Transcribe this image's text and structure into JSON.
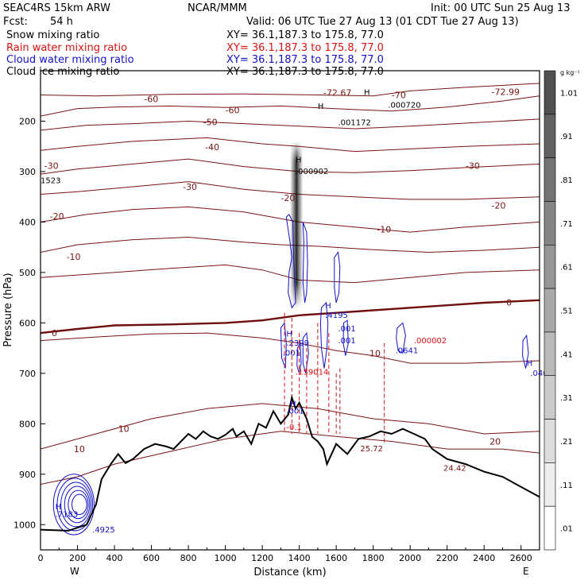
{
  "header": {
    "model": "SEAC4RS 15km ARW",
    "fcst_label": "Fcst:",
    "fcst_value": "54 h",
    "center": "NCAR/MMM",
    "init": "Init: 00 UTC Sun 25 Aug 13",
    "valid": "Valid: 06 UTC Tue 27 Aug 13 (01 CDT Tue 27 Aug 13)",
    "fields": [
      {
        "name": "Snow mixing ratio",
        "xy": "XY=  36.1,187.3 to 175.8, 77.0",
        "color": "#000000"
      },
      {
        "name": "Rain water mixing ratio",
        "xy": "XY=  36.1,187.3 to 175.8, 77.0",
        "color": "#dd1111"
      },
      {
        "name": "Cloud water mixing ratio",
        "xy": "XY=  36.1,187.3 to 175.8, 77.0",
        "color": "#1111cc"
      },
      {
        "name": "Cloud ice mixing ratio",
        "xy": "XY=  36.1,187.3 to 175.8, 77.0",
        "color": "#000000"
      }
    ]
  },
  "colors": {
    "temperature": "#7a1212",
    "freezing": "#6e0e0e",
    "terrain": "#000000",
    "rain": "#dd1111",
    "cloud": "#1111cc"
  },
  "chart_data": {
    "type": "cross-section",
    "xlabel": "Distance (km)",
    "ylabel": "Pressure (hPa)",
    "xlim": [
      0,
      2700
    ],
    "ylim": [
      1050,
      100
    ],
    "x_ticks": [
      0,
      200,
      400,
      600,
      800,
      1000,
      1200,
      1400,
      1600,
      1800,
      2000,
      2200,
      2400,
      2600
    ],
    "y_ticks": [
      200,
      300,
      400,
      500,
      600,
      700,
      800,
      900,
      1000
    ],
    "x_end_labels": [
      "W",
      "E"
    ],
    "colorbar": {
      "unit": "g kg⁻¹",
      "labels": [
        "1.01",
        ".91",
        ".81",
        ".71",
        ".61",
        ".51",
        ".41",
        ".31",
        ".21",
        ".11",
        ".01"
      ]
    },
    "temperature_contours": [
      {
        "value": -70,
        "points": [
          [
            0,
            148
          ],
          [
            300,
            150
          ],
          [
            700,
            147
          ],
          [
            1100,
            146
          ],
          [
            1500,
            148
          ],
          [
            1800,
            150
          ],
          [
            2000,
            140
          ],
          [
            2300,
            133
          ],
          [
            2700,
            125
          ]
        ]
      },
      {
        "value": -60,
        "points": [
          [
            0,
            190
          ],
          [
            200,
            175
          ],
          [
            400,
            172
          ],
          [
            700,
            170
          ],
          [
            1000,
            173
          ],
          [
            1300,
            170
          ],
          [
            1700,
            177
          ],
          [
            1900,
            180
          ],
          [
            2200,
            172
          ],
          [
            2500,
            160
          ],
          [
            2700,
            150
          ]
        ]
      },
      {
        "value": -50,
        "points": [
          [
            0,
            218
          ],
          [
            250,
            208
          ],
          [
            500,
            205
          ],
          [
            800,
            200
          ],
          [
            1100,
            205
          ],
          [
            1400,
            210
          ],
          [
            1700,
            215
          ],
          [
            2000,
            210
          ],
          [
            2300,
            204
          ],
          [
            2700,
            196
          ]
        ]
      },
      {
        "value": -40,
        "points": [
          [
            0,
            258
          ],
          [
            200,
            250
          ],
          [
            500,
            240
          ],
          [
            900,
            233
          ],
          [
            1200,
            245
          ],
          [
            1400,
            250
          ],
          [
            1700,
            260
          ],
          [
            2000,
            255
          ],
          [
            2300,
            250
          ],
          [
            2700,
            245
          ]
        ]
      },
      {
        "value": -30,
        "points": [
          [
            0,
            305
          ],
          [
            200,
            295
          ],
          [
            500,
            285
          ],
          [
            800,
            275
          ],
          [
            1100,
            290
          ],
          [
            1400,
            300
          ],
          [
            1700,
            302
          ],
          [
            2000,
            298
          ],
          [
            2300,
            292
          ],
          [
            2700,
            285
          ]
        ]
      },
      {
        "value": -20,
        "points": [
          [
            0,
            345
          ],
          [
            200,
            340
          ],
          [
            500,
            330
          ],
          [
            800,
            320
          ],
          [
            1100,
            335
          ],
          [
            1400,
            345
          ],
          [
            1700,
            350
          ],
          [
            2000,
            355
          ],
          [
            2300,
            355
          ],
          [
            2700,
            350
          ]
        ]
      },
      {
        "value": -10,
        "points": [
          [
            0,
            400
          ],
          [
            250,
            385
          ],
          [
            500,
            375
          ],
          [
            800,
            370
          ],
          [
            1100,
            380
          ],
          [
            1400,
            400
          ],
          [
            1700,
            410
          ],
          [
            2000,
            420
          ],
          [
            2300,
            410
          ],
          [
            2700,
            400
          ]
        ]
      },
      {
        "value": -10,
        "points": [
          [
            0,
            460
          ],
          [
            200,
            445
          ],
          [
            500,
            435
          ],
          [
            800,
            430
          ],
          [
            1100,
            440
          ],
          [
            1300,
            445
          ],
          [
            1500,
            448
          ],
          [
            1800,
            455
          ],
          [
            2100,
            460
          ],
          [
            2400,
            456
          ],
          [
            2700,
            450
          ]
        ]
      },
      {
        "value": 0,
        "points": [
          [
            0,
            510
          ],
          [
            200,
            505
          ],
          [
            400,
            500
          ],
          [
            700,
            492
          ],
          [
            1000,
            485
          ],
          [
            1200,
            495
          ],
          [
            1400,
            515
          ],
          [
            1700,
            520
          ],
          [
            2000,
            510
          ],
          [
            2300,
            500
          ],
          [
            2700,
            495
          ]
        ]
      },
      {
        "value": 0,
        "points": [
          [
            0,
            620
          ],
          [
            200,
            612
          ],
          [
            400,
            605
          ],
          [
            700,
            603
          ],
          [
            1000,
            600
          ],
          [
            1200,
            595
          ],
          [
            1400,
            585
          ],
          [
            1600,
            580
          ],
          [
            1800,
            575
          ],
          [
            2000,
            570
          ],
          [
            2200,
            565
          ],
          [
            2400,
            560
          ],
          [
            2700,
            555
          ]
        ]
      },
      {
        "value": 10,
        "points": [
          [
            0,
            635
          ],
          [
            300,
            628
          ],
          [
            600,
            622
          ],
          [
            900,
            620
          ],
          [
            1200,
            630
          ],
          [
            1400,
            640
          ],
          [
            1600,
            655
          ],
          [
            1800,
            665
          ],
          [
            2000,
            680
          ],
          [
            2300,
            680
          ],
          [
            2700,
            675
          ]
        ]
      },
      {
        "value": 10,
        "points": [
          [
            0,
            850
          ],
          [
            300,
            820
          ],
          [
            600,
            790
          ],
          [
            900,
            770
          ],
          [
            1200,
            760
          ],
          [
            1500,
            770
          ],
          [
            1800,
            790
          ],
          [
            2100,
            800
          ],
          [
            2400,
            820
          ],
          [
            2700,
            815
          ]
        ]
      },
      {
        "value": 20,
        "points": [
          [
            0,
            920
          ],
          [
            200,
            905
          ],
          [
            400,
            880
          ],
          [
            700,
            855
          ],
          [
            1000,
            830
          ],
          [
            1300,
            815
          ],
          [
            1600,
            825
          ],
          [
            1900,
            835
          ],
          [
            2200,
            850
          ],
          [
            2500,
            850
          ],
          [
            2700,
            858
          ]
        ]
      }
    ],
    "contour_labels": [
      {
        "text": "-72.67",
        "x": 1530,
        "p": 143
      },
      {
        "text": "-70",
        "x": 1900,
        "p": 148
      },
      {
        "text": "-72.99",
        "x": 2440,
        "p": 142
      },
      {
        "text": "-60",
        "x": 560,
        "p": 156
      },
      {
        "text": "-60",
        "x": 1000,
        "p": 178
      },
      {
        "text": "-50",
        "x": 880,
        "p": 202
      },
      {
        "text": "-40",
        "x": 890,
        "p": 251
      },
      {
        "text": "-30",
        "x": 2300,
        "p": 288
      },
      {
        "text": "-30",
        "x": 20,
        "p": 288
      },
      {
        "text": "-30",
        "x": 770,
        "p": 330
      },
      {
        "text": "-20",
        "x": 1300,
        "p": 352
      },
      {
        "text": "-20",
        "x": 2440,
        "p": 367
      },
      {
        "text": "-20",
        "x": 50,
        "p": 388
      },
      {
        "text": "-10",
        "x": 1820,
        "p": 414
      },
      {
        "text": "-10",
        "x": 140,
        "p": 469
      },
      {
        "text": "0",
        "x": 2520,
        "p": 559
      },
      {
        "text": "0",
        "x": 60,
        "p": 620
      },
      {
        "text": "10",
        "x": 1780,
        "p": 660
      },
      {
        "text": "10",
        "x": 420,
        "p": 810
      },
      {
        "text": "10",
        "x": 180,
        "p": 850
      },
      {
        "text": "20",
        "x": 2430,
        "p": 835
      }
    ],
    "terrain": [
      [
        0,
        1010
      ],
      [
        150,
        1012
      ],
      [
        250,
        1000
      ],
      [
        300,
        960
      ],
      [
        330,
        910
      ],
      [
        380,
        880
      ],
      [
        420,
        860
      ],
      [
        460,
        878
      ],
      [
        500,
        870
      ],
      [
        560,
        850
      ],
      [
        620,
        840
      ],
      [
        680,
        845
      ],
      [
        720,
        850
      ],
      [
        760,
        835
      ],
      [
        800,
        820
      ],
      [
        840,
        830
      ],
      [
        880,
        815
      ],
      [
        920,
        825
      ],
      [
        960,
        830
      ],
      [
        1000,
        822
      ],
      [
        1040,
        810
      ],
      [
        1060,
        825
      ],
      [
        1100,
        815
      ],
      [
        1140,
        840
      ],
      [
        1180,
        800
      ],
      [
        1220,
        808
      ],
      [
        1260,
        775
      ],
      [
        1300,
        800
      ],
      [
        1340,
        782
      ],
      [
        1360,
        748
      ],
      [
        1380,
        770
      ],
      [
        1400,
        758
      ],
      [
        1440,
        790
      ],
      [
        1470,
        826
      ],
      [
        1500,
        835
      ],
      [
        1530,
        850
      ],
      [
        1550,
        880
      ],
      [
        1600,
        840
      ],
      [
        1660,
        860
      ],
      [
        1720,
        830
      ],
      [
        1780,
        825
      ],
      [
        1840,
        815
      ],
      [
        1900,
        820
      ],
      [
        1960,
        810
      ],
      [
        2020,
        820
      ],
      [
        2080,
        830
      ],
      [
        2120,
        850
      ],
      [
        2200,
        870
      ],
      [
        2300,
        880
      ],
      [
        2400,
        895
      ],
      [
        2500,
        905
      ],
      [
        2600,
        925
      ],
      [
        2700,
        945
      ]
    ],
    "cloud_ice_plume": {
      "x_center": 1385,
      "p_top": 240,
      "p_bottom": 570,
      "width_km": 70,
      "max_g_per_kg": 1.01
    },
    "maxima": [
      {
        "text": "H",
        "x": 1750,
        "p": 148
      },
      {
        "text": ".000720",
        "x": 1880,
        "p": 173
      },
      {
        "text": "H",
        "x": 1500,
        "p": 176
      },
      {
        "text": ".001172",
        "x": 1610,
        "p": 208
      },
      {
        "text": "H",
        "x": 1380,
        "p": 282
      },
      {
        "text": ".000902",
        "x": 1380,
        "p": 305
      },
      {
        "text": "1523",
        "x": 0,
        "p": 323
      },
      {
        "text": "H",
        "x": 1540,
        "p": 571
      },
      {
        "text": ".4195",
        "x": 1540,
        "p": 590
      },
      {
        "text": ".001",
        "x": 1610,
        "p": 617
      },
      {
        "text": ".001",
        "x": 1610,
        "p": 640
      },
      {
        "text": "H",
        "x": 1330,
        "p": 627
      },
      {
        "text": ".2399",
        "x": 1330,
        "p": 645
      },
      {
        "text": ".001",
        "x": 1310,
        "p": 665
      },
      {
        "text": ".159014",
        "x": 1380,
        "p": 703
      },
      {
        "text": "H",
        "x": 1350,
        "p": 766
      },
      {
        "text": ".001",
        "x": 1330,
        "p": 780
      },
      {
        "text": ".000002",
        "x": 2020,
        "p": 640
      },
      {
        "text": ".0641",
        "x": 1920,
        "p": 660
      },
      {
        "text": "H",
        "x": 2630,
        "p": 685
      },
      {
        "text": ".040",
        "x": 2650,
        "p": 705
      },
      {
        "text": "-0.1",
        "x": 1330,
        "p": 812
      },
      {
        "text": "25.72",
        "x": 1730,
        "p": 855
      },
      {
        "text": "24.42",
        "x": 2180,
        "p": 893
      },
      {
        "text": "H",
        "x": 80,
        "p": 970
      },
      {
        "text": ".7183",
        "x": 80,
        "p": 985
      },
      {
        "text": ".4925",
        "x": 280,
        "p": 1015
      }
    ]
  }
}
